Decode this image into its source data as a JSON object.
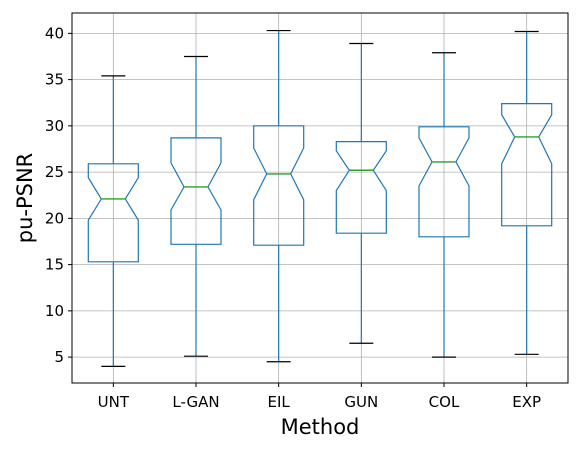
{
  "chart_data": {
    "type": "box",
    "notched": true,
    "xlabel": "Method",
    "ylabel": "pu-PSNR",
    "ylim": [
      2.2,
      42.2
    ],
    "yticks": [
      5,
      10,
      15,
      20,
      25,
      30,
      35,
      40
    ],
    "grid": true,
    "colors": {
      "box": "#1f77b4",
      "median": "#2ca02c",
      "cap": "#000000",
      "grid": "#b0b0b0"
    },
    "categories": [
      "UNT",
      "L-GAN",
      "EIL",
      "GUN",
      "COL",
      "EXP"
    ],
    "boxes": [
      {
        "label": "UNT",
        "min": 4.0,
        "q1": 15.3,
        "median": 22.1,
        "q3": 25.9,
        "max": 35.4,
        "notch_low": 19.8,
        "notch_high": 24.4
      },
      {
        "label": "L-GAN",
        "min": 5.1,
        "q1": 17.2,
        "median": 23.4,
        "q3": 28.7,
        "max": 37.5,
        "notch_low": 20.9,
        "notch_high": 26.0
      },
      {
        "label": "EIL",
        "min": 4.5,
        "q1": 17.1,
        "median": 24.8,
        "q3": 30.0,
        "max": 40.3,
        "notch_low": 22.0,
        "notch_high": 27.6
      },
      {
        "label": "GUN",
        "min": 6.5,
        "q1": 18.4,
        "median": 25.2,
        "q3": 28.3,
        "max": 38.9,
        "notch_low": 23.0,
        "notch_high": 27.3
      },
      {
        "label": "COL",
        "min": 5.0,
        "q1": 18.0,
        "median": 26.1,
        "q3": 29.9,
        "max": 37.9,
        "notch_low": 23.5,
        "notch_high": 28.7
      },
      {
        "label": "EXP",
        "min": 5.3,
        "q1": 19.2,
        "median": 28.8,
        "q3": 32.4,
        "max": 40.2,
        "notch_low": 25.9,
        "notch_high": 31.2
      }
    ]
  }
}
